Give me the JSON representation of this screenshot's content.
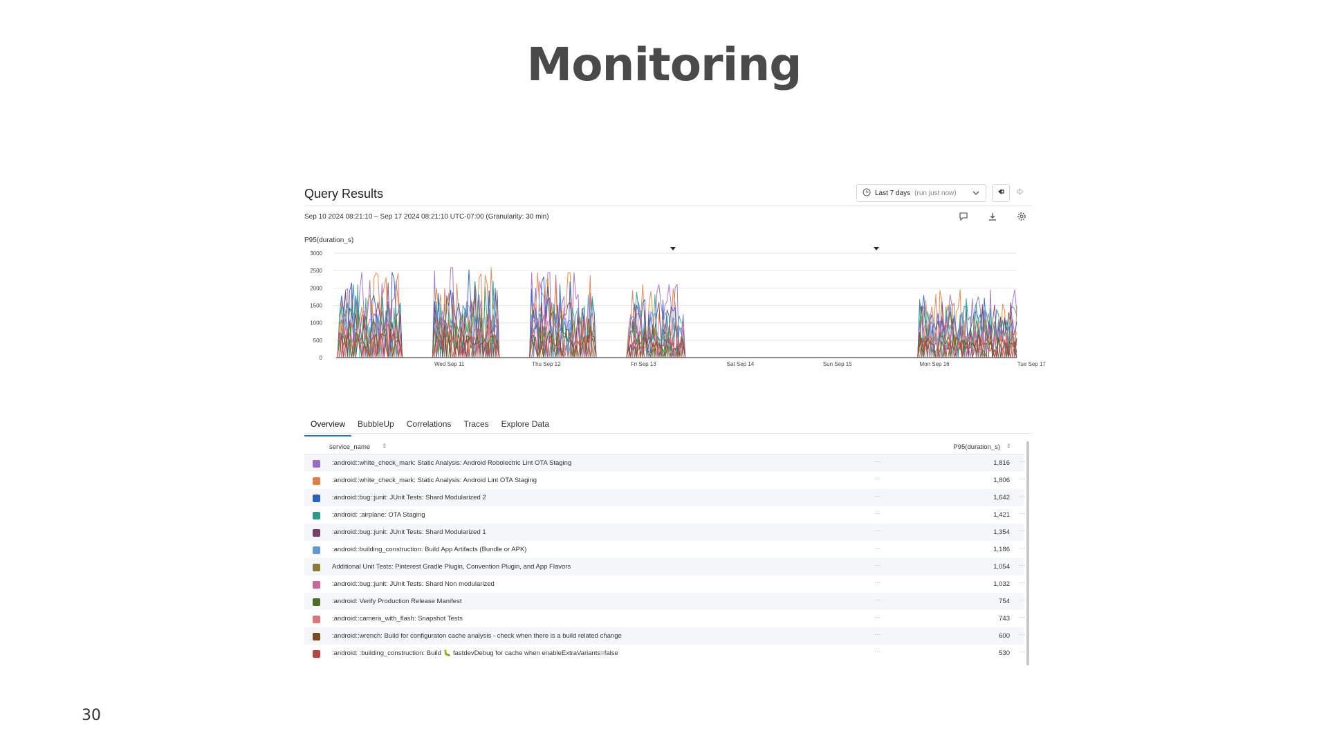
{
  "slide": {
    "title": "Monitoring",
    "page_number": "30"
  },
  "panel": {
    "title": "Query Results",
    "time_range": {
      "label": "Last 7 days",
      "hint": "(run just now)"
    },
    "range_text": "Sep 10 2024 08:21:10 – Sep 17 2024 08:21:10 UTC-07:00 (Granularity: 30 min)",
    "metric_label": "P95(duration_s)",
    "toolbar_icons": [
      "clock-icon",
      "chevron-down-icon",
      "rewind-icon",
      "forward-icon",
      "comment-icon",
      "download-icon",
      "gear-icon"
    ]
  },
  "chart_data": {
    "type": "line",
    "ylabel": "P95(duration_s)",
    "ylim": [
      0,
      3000
    ],
    "yticks": [
      "3000",
      "2500",
      "2000",
      "1500",
      "1000",
      "500",
      "0"
    ],
    "xticks": [
      "Wed Sep 11",
      "Thu Sep 12",
      "Fri Sep 13",
      "Sat Sep 14",
      "Sun Sep 15",
      "Mon Sep 16",
      "Tue Sep 17"
    ],
    "grid": true,
    "series_colors": [
      "#9c6bc2",
      "#d9824a",
      "#2c5fb8",
      "#2d9b88",
      "#7a3e6e",
      "#5e9bd1",
      "#8c7a3a",
      "#c26b9c",
      "#4f6b28",
      "#d9787a",
      "#7a4a22",
      "#b04848"
    ],
    "active_periods": [
      {
        "start": "Sep 10 08:30",
        "end": "Sep 11 00:00",
        "peak": 2450
      },
      {
        "start": "Sep 11 08:00",
        "end": "Sep 12 00:00",
        "peak": 2580
      },
      {
        "start": "Sep 12 08:00",
        "end": "Sep 13 00:00",
        "peak": 2440
      },
      {
        "start": "Sep 13 08:00",
        "end": "Sep 13 22:00",
        "peak": 2100
      },
      {
        "start": "Sep 16 08:00",
        "end": "Sep 17 08:21",
        "peak": 1950
      }
    ],
    "series": [
      {
        "name": ":android::white_check_mark: Static Analysis: Android Robolectric Lint OTA Staging",
        "value": 1816
      },
      {
        "name": ":android::white_check_mark: Static Analysis: Android Lint OTA Staging",
        "value": 1806
      },
      {
        "name": ":android::bug::junit: JUnit Tests: Shard Modularized 2",
        "value": 1642
      },
      {
        "name": ":android: :airplane: OTA Staging",
        "value": 1421
      },
      {
        "name": ":android::bug::junit: JUnit Tests: Shard Modularized 1",
        "value": 1354
      },
      {
        "name": ":android::building_construction: Build App Artifacts (Bundle or APK)",
        "value": 1186
      },
      {
        "name": "Additional Unit Tests: Pinterest Gradle Plugin, Convention Plugin, and App Flavors",
        "value": 1054
      },
      {
        "name": ":android::bug::junit: JUnit Tests: Shard Non modularized",
        "value": 1032
      },
      {
        "name": ":android: Verify Production Release Manifest",
        "value": 754
      },
      {
        "name": ":android::camera_with_flash: Snapshot Tests",
        "value": 743
      },
      {
        "name": ":android::wrench: Build for configuraton cache analysis - check when there is a build related change",
        "value": 600
      },
      {
        "name": ":android: :building_construction: Build 🐛 fastdevDebug for cache when enableExtraVariants=false",
        "value": 530
      }
    ]
  },
  "tabs": [
    "Overview",
    "BubbleUp",
    "Correlations",
    "Traces",
    "Explore Data"
  ],
  "table": {
    "col_name": "service_name",
    "col_value": "P95(duration_s)",
    "rows": [
      {
        "name": ":android::white_check_mark: Static Analysis: Android Robolectric Lint OTA Staging",
        "value": "1,816",
        "color": "#9c6bc2"
      },
      {
        "name": ":android::white_check_mark: Static Analysis: Android Lint OTA Staging",
        "value": "1,806",
        "color": "#d9824a"
      },
      {
        "name": ":android::bug::junit: JUnit Tests: Shard Modularized 2",
        "value": "1,642",
        "color": "#2c5fb8"
      },
      {
        "name": ":android: :airplane: OTA Staging",
        "value": "1,421",
        "color": "#2d9b88"
      },
      {
        "name": ":android::bug::junit: JUnit Tests: Shard Modularized 1",
        "value": "1,354",
        "color": "#7a3e6e"
      },
      {
        "name": ":android::building_construction: Build App Artifacts (Bundle or APK)",
        "value": "1,186",
        "color": "#5e9bd1"
      },
      {
        "name": "Additional Unit Tests: Pinterest Gradle Plugin, Convention Plugin, and App Flavors",
        "value": "1,054",
        "color": "#8c7a3a"
      },
      {
        "name": ":android::bug::junit: JUnit Tests: Shard Non modularized",
        "value": "1,032",
        "color": "#c26b9c"
      },
      {
        "name": ":android: Verify Production Release Manifest",
        "value": "754",
        "color": "#4f6b28"
      },
      {
        "name": ":android::camera_with_flash: Snapshot Tests",
        "value": "743",
        "color": "#d9787a"
      },
      {
        "name": ":android::wrench: Build for configuraton cache analysis - check when there is a build related change",
        "value": "600",
        "color": "#7a4a22"
      },
      {
        "name": ":android: :building_construction: Build 🐛 fastdevDebug for cache when enableExtraVariants=false",
        "value": "530",
        "color": "#b04848"
      }
    ]
  }
}
